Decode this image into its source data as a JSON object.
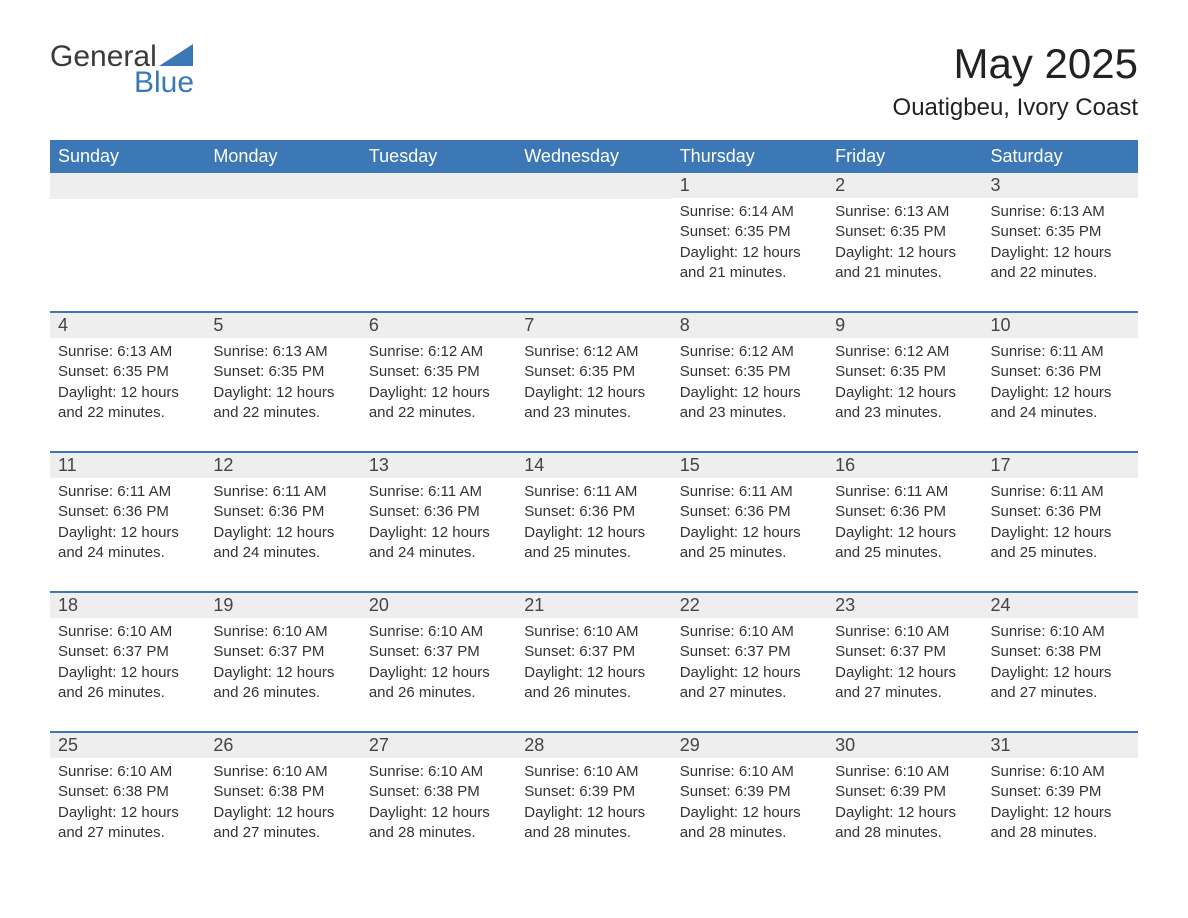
{
  "logo": {
    "text1": "General",
    "text2": "Blue",
    "icon_fill": "#3b78b5"
  },
  "header": {
    "month_title": "May 2025",
    "location": "Ouatigbeu, Ivory Coast"
  },
  "colors": {
    "header_bg": "#3b78b5",
    "header_text": "#ffffff",
    "daynum_bg": "#eeeeee",
    "row_border": "#3b78b5",
    "body_text": "#333333",
    "page_bg": "#ffffff"
  },
  "typography": {
    "month_title_fontsize": 42,
    "location_fontsize": 24,
    "day_header_fontsize": 18,
    "daynum_fontsize": 18,
    "body_fontsize": 15
  },
  "calendar": {
    "type": "table",
    "day_headers": [
      "Sunday",
      "Monday",
      "Tuesday",
      "Wednesday",
      "Thursday",
      "Friday",
      "Saturday"
    ],
    "weeks": [
      [
        null,
        null,
        null,
        null,
        {
          "n": "1",
          "sunrise": "6:14 AM",
          "sunset": "6:35 PM",
          "daylight": "12 hours and 21 minutes."
        },
        {
          "n": "2",
          "sunrise": "6:13 AM",
          "sunset": "6:35 PM",
          "daylight": "12 hours and 21 minutes."
        },
        {
          "n": "3",
          "sunrise": "6:13 AM",
          "sunset": "6:35 PM",
          "daylight": "12 hours and 22 minutes."
        }
      ],
      [
        {
          "n": "4",
          "sunrise": "6:13 AM",
          "sunset": "6:35 PM",
          "daylight": "12 hours and 22 minutes."
        },
        {
          "n": "5",
          "sunrise": "6:13 AM",
          "sunset": "6:35 PM",
          "daylight": "12 hours and 22 minutes."
        },
        {
          "n": "6",
          "sunrise": "6:12 AM",
          "sunset": "6:35 PM",
          "daylight": "12 hours and 22 minutes."
        },
        {
          "n": "7",
          "sunrise": "6:12 AM",
          "sunset": "6:35 PM",
          "daylight": "12 hours and 23 minutes."
        },
        {
          "n": "8",
          "sunrise": "6:12 AM",
          "sunset": "6:35 PM",
          "daylight": "12 hours and 23 minutes."
        },
        {
          "n": "9",
          "sunrise": "6:12 AM",
          "sunset": "6:35 PM",
          "daylight": "12 hours and 23 minutes."
        },
        {
          "n": "10",
          "sunrise": "6:11 AM",
          "sunset": "6:36 PM",
          "daylight": "12 hours and 24 minutes."
        }
      ],
      [
        {
          "n": "11",
          "sunrise": "6:11 AM",
          "sunset": "6:36 PM",
          "daylight": "12 hours and 24 minutes."
        },
        {
          "n": "12",
          "sunrise": "6:11 AM",
          "sunset": "6:36 PM",
          "daylight": "12 hours and 24 minutes."
        },
        {
          "n": "13",
          "sunrise": "6:11 AM",
          "sunset": "6:36 PM",
          "daylight": "12 hours and 24 minutes."
        },
        {
          "n": "14",
          "sunrise": "6:11 AM",
          "sunset": "6:36 PM",
          "daylight": "12 hours and 25 minutes."
        },
        {
          "n": "15",
          "sunrise": "6:11 AM",
          "sunset": "6:36 PM",
          "daylight": "12 hours and 25 minutes."
        },
        {
          "n": "16",
          "sunrise": "6:11 AM",
          "sunset": "6:36 PM",
          "daylight": "12 hours and 25 minutes."
        },
        {
          "n": "17",
          "sunrise": "6:11 AM",
          "sunset": "6:36 PM",
          "daylight": "12 hours and 25 minutes."
        }
      ],
      [
        {
          "n": "18",
          "sunrise": "6:10 AM",
          "sunset": "6:37 PM",
          "daylight": "12 hours and 26 minutes."
        },
        {
          "n": "19",
          "sunrise": "6:10 AM",
          "sunset": "6:37 PM",
          "daylight": "12 hours and 26 minutes."
        },
        {
          "n": "20",
          "sunrise": "6:10 AM",
          "sunset": "6:37 PM",
          "daylight": "12 hours and 26 minutes."
        },
        {
          "n": "21",
          "sunrise": "6:10 AM",
          "sunset": "6:37 PM",
          "daylight": "12 hours and 26 minutes."
        },
        {
          "n": "22",
          "sunrise": "6:10 AM",
          "sunset": "6:37 PM",
          "daylight": "12 hours and 27 minutes."
        },
        {
          "n": "23",
          "sunrise": "6:10 AM",
          "sunset": "6:37 PM",
          "daylight": "12 hours and 27 minutes."
        },
        {
          "n": "24",
          "sunrise": "6:10 AM",
          "sunset": "6:38 PM",
          "daylight": "12 hours and 27 minutes."
        }
      ],
      [
        {
          "n": "25",
          "sunrise": "6:10 AM",
          "sunset": "6:38 PM",
          "daylight": "12 hours and 27 minutes."
        },
        {
          "n": "26",
          "sunrise": "6:10 AM",
          "sunset": "6:38 PM",
          "daylight": "12 hours and 27 minutes."
        },
        {
          "n": "27",
          "sunrise": "6:10 AM",
          "sunset": "6:38 PM",
          "daylight": "12 hours and 28 minutes."
        },
        {
          "n": "28",
          "sunrise": "6:10 AM",
          "sunset": "6:39 PM",
          "daylight": "12 hours and 28 minutes."
        },
        {
          "n": "29",
          "sunrise": "6:10 AM",
          "sunset": "6:39 PM",
          "daylight": "12 hours and 28 minutes."
        },
        {
          "n": "30",
          "sunrise": "6:10 AM",
          "sunset": "6:39 PM",
          "daylight": "12 hours and 28 minutes."
        },
        {
          "n": "31",
          "sunrise": "6:10 AM",
          "sunset": "6:39 PM",
          "daylight": "12 hours and 28 minutes."
        }
      ]
    ],
    "labels": {
      "sunrise_prefix": "Sunrise: ",
      "sunset_prefix": "Sunset: ",
      "daylight_prefix": "Daylight: "
    }
  }
}
